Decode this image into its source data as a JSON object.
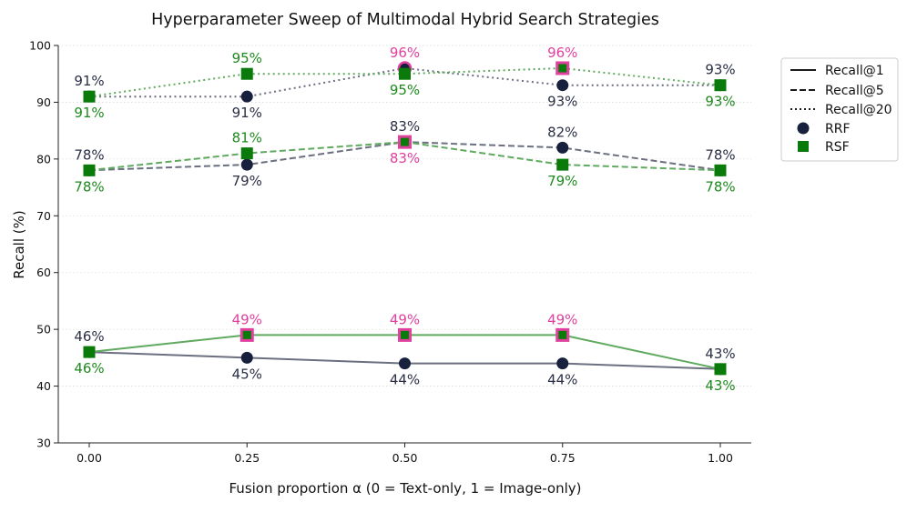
{
  "chart_data": {
    "type": "line",
    "title": "Hyperparameter Sweep of Multimodal Hybrid Search Strategies",
    "xlabel": "Fusion proportion α (0 = Text-only, 1 = Image-only)",
    "ylabel": "Recall (%)",
    "x": [
      0.0,
      0.25,
      0.5,
      0.75,
      1.0
    ],
    "x_tick_labels": [
      "0.00",
      "0.25",
      "0.50",
      "0.75",
      "1.00"
    ],
    "ylim": [
      30,
      100
    ],
    "y_ticks": [
      30,
      40,
      50,
      60,
      70,
      80,
      90,
      100
    ],
    "grid": "y-dotted",
    "series": [
      {
        "name": "RRF Recall@1",
        "method": "RRF",
        "metric": "Recall@1",
        "values": [
          46,
          45,
          44,
          44,
          43
        ],
        "labels": [
          "46%",
          "45%",
          "44%",
          "44%",
          "43%"
        ],
        "label_position": [
          "above",
          "below",
          "below",
          "below",
          "above"
        ]
      },
      {
        "name": "RSF Recall@1",
        "method": "RSF",
        "metric": "Recall@1",
        "values": [
          46,
          49,
          49,
          49,
          43
        ],
        "labels": [
          "46%",
          "49%",
          "49%",
          "49%",
          "43%"
        ],
        "label_position": [
          "below",
          "above",
          "above",
          "above",
          "below"
        ],
        "best": [
          false,
          true,
          true,
          true,
          false
        ]
      },
      {
        "name": "RRF Recall@5",
        "method": "RRF",
        "metric": "Recall@5",
        "values": [
          78,
          79,
          83,
          82,
          78
        ],
        "labels": [
          "78%",
          "79%",
          "83%",
          "82%",
          "78%"
        ],
        "label_position": [
          "above",
          "below",
          "above",
          "above",
          "above"
        ]
      },
      {
        "name": "RSF Recall@5",
        "method": "RSF",
        "metric": "Recall@5",
        "values": [
          78,
          81,
          83,
          79,
          78
        ],
        "labels": [
          "78%",
          "81%",
          "83%",
          "79%",
          "78%"
        ],
        "label_position": [
          "below",
          "above",
          "below",
          "below",
          "below"
        ],
        "best": [
          false,
          false,
          true,
          false,
          false
        ]
      },
      {
        "name": "RRF Recall@20",
        "method": "RRF",
        "metric": "Recall@20",
        "values": [
          91,
          91,
          96,
          93,
          93
        ],
        "labels": [
          "91%",
          "91%",
          "96%",
          "93%",
          "93%"
        ],
        "label_position": [
          "above",
          "below",
          "above",
          "below",
          "above"
        ],
        "best": [
          false,
          false,
          true,
          false,
          false
        ]
      },
      {
        "name": "RSF Recall@20",
        "method": "RSF",
        "metric": "Recall@20",
        "values": [
          91,
          95,
          95,
          96,
          93
        ],
        "labels": [
          "91%",
          "95%",
          "95%",
          "96%",
          "93%"
        ],
        "label_position": [
          "below",
          "above",
          "below",
          "above",
          "below"
        ],
        "best": [
          false,
          false,
          false,
          true,
          false
        ]
      }
    ],
    "legend": {
      "placement": "top-right-outside",
      "entries": [
        {
          "label": "Recall@1",
          "kind": "line",
          "style": "solid"
        },
        {
          "label": "Recall@5",
          "kind": "line",
          "style": "dashed"
        },
        {
          "label": "Recall@20",
          "kind": "line",
          "style": "dotted"
        },
        {
          "label": "RRF",
          "kind": "marker",
          "marker": "circle"
        },
        {
          "label": "RSF",
          "kind": "marker",
          "marker": "square"
        }
      ]
    },
    "colors": {
      "rrf": "#17203d",
      "rrf_line": "#6b6f80",
      "rrf_label": "#2b2f45",
      "rsf": "#0a7a0a",
      "rsf_line": "#5faa5f",
      "rsf_label": "#1e8a1e",
      "best": "#e0409e"
    }
  }
}
